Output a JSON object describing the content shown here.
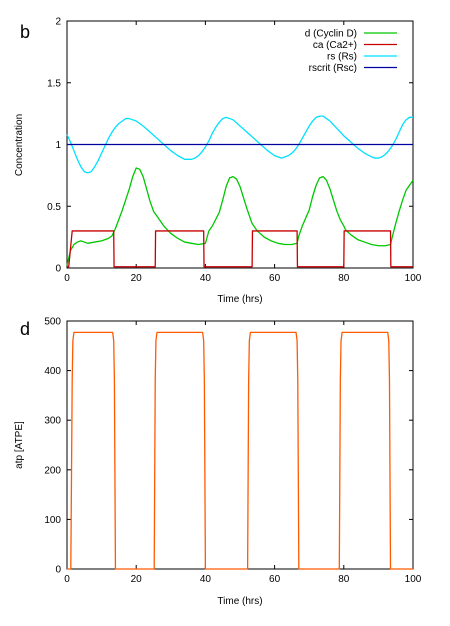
{
  "chart_data": [
    {
      "type": "line",
      "panel_label": "b",
      "xlabel": "Time (hrs)",
      "ylabel": "Concentration",
      "xlim": [
        0,
        100
      ],
      "ylim": [
        0,
        2
      ],
      "xticks": [
        "0",
        "20",
        "40",
        "60",
        "80",
        "100"
      ],
      "yticks": [
        "0",
        "0.5",
        "1",
        "1.5",
        "2"
      ],
      "legend_position": "top-right",
      "grid": false,
      "series": [
        {
          "name": "d (Cyclin D)",
          "color": "#00c800",
          "x": [
            0,
            1,
            2,
            3,
            4,
            5,
            6,
            8,
            10,
            12,
            13,
            14,
            16,
            18,
            19,
            20,
            21,
            22,
            23,
            24,
            25,
            26,
            27,
            28,
            30,
            32,
            34,
            36,
            38,
            40,
            40.5,
            41,
            42,
            44,
            45,
            46,
            47,
            48,
            49,
            50,
            51,
            52,
            53,
            53.5,
            55,
            57,
            59,
            61,
            63,
            65,
            66.5,
            67,
            68,
            70,
            71,
            72,
            73,
            74,
            75,
            76,
            77,
            78,
            79,
            80,
            80.5,
            82,
            84,
            86,
            88,
            90,
            92,
            93.5,
            94,
            95,
            96,
            97,
            98,
            99,
            100
          ],
          "y": [
            0.02,
            0.14,
            0.19,
            0.21,
            0.22,
            0.21,
            0.2,
            0.21,
            0.22,
            0.24,
            0.26,
            0.32,
            0.47,
            0.64,
            0.74,
            0.81,
            0.8,
            0.74,
            0.64,
            0.54,
            0.46,
            0.42,
            0.38,
            0.34,
            0.28,
            0.24,
            0.21,
            0.2,
            0.19,
            0.2,
            0.25,
            0.3,
            0.34,
            0.45,
            0.55,
            0.66,
            0.73,
            0.74,
            0.72,
            0.66,
            0.57,
            0.48,
            0.4,
            0.36,
            0.3,
            0.25,
            0.22,
            0.2,
            0.19,
            0.19,
            0.2,
            0.26,
            0.34,
            0.47,
            0.58,
            0.67,
            0.73,
            0.74,
            0.71,
            0.64,
            0.55,
            0.46,
            0.39,
            0.34,
            0.31,
            0.27,
            0.23,
            0.21,
            0.19,
            0.18,
            0.18,
            0.19,
            0.25,
            0.36,
            0.46,
            0.55,
            0.63,
            0.67,
            0.71
          ]
        },
        {
          "name": "ca (Ca2+)",
          "color": "#c80000",
          "x": [
            0,
            0.5,
            1.5,
            13.5,
            13.6,
            25.5,
            25.6,
            39.5,
            39.6,
            53.5,
            53.6,
            66.5,
            66.6,
            80.0,
            80.1,
            93.5,
            93.6,
            100
          ],
          "y": [
            0.01,
            0.01,
            0.3,
            0.3,
            0.01,
            0.01,
            0.3,
            0.3,
            0.01,
            0.01,
            0.3,
            0.3,
            0.01,
            0.01,
            0.3,
            0.3,
            0.01,
            0.01
          ]
        },
        {
          "name": "rs (Rs)",
          "color": "#00e0ff",
          "x": [
            0,
            1,
            2,
            3,
            4,
            5,
            6,
            7,
            8,
            9,
            10,
            11,
            12,
            13,
            14,
            15,
            16,
            17,
            18,
            19,
            20,
            22,
            24,
            26,
            28,
            30,
            32,
            34,
            35,
            36,
            37,
            38,
            39,
            40,
            41,
            42,
            43,
            44,
            45,
            46,
            47,
            48,
            50,
            52,
            54,
            56,
            58,
            60,
            61,
            62,
            63,
            64,
            65,
            66,
            67,
            68,
            69,
            70,
            71,
            72,
            73,
            74,
            75,
            76,
            78,
            80,
            82,
            84,
            86,
            88,
            89,
            90,
            91,
            92,
            93,
            94,
            95,
            96,
            97,
            98,
            99,
            100
          ],
          "y": [
            1.08,
            1.02,
            0.95,
            0.88,
            0.82,
            0.78,
            0.77,
            0.78,
            0.82,
            0.87,
            0.93,
            0.99,
            1.05,
            1.1,
            1.14,
            1.17,
            1.19,
            1.21,
            1.21,
            1.2,
            1.19,
            1.15,
            1.1,
            1.05,
            1.0,
            0.95,
            0.91,
            0.88,
            0.88,
            0.88,
            0.89,
            0.91,
            0.94,
            0.98,
            1.03,
            1.09,
            1.14,
            1.18,
            1.21,
            1.22,
            1.21,
            1.2,
            1.15,
            1.1,
            1.05,
            1.0,
            0.95,
            0.91,
            0.9,
            0.89,
            0.9,
            0.91,
            0.93,
            0.96,
            1.0,
            1.05,
            1.1,
            1.15,
            1.19,
            1.22,
            1.23,
            1.23,
            1.21,
            1.19,
            1.13,
            1.07,
            1.02,
            0.97,
            0.93,
            0.9,
            0.89,
            0.89,
            0.9,
            0.92,
            0.95,
            0.99,
            1.04,
            1.1,
            1.16,
            1.2,
            1.22,
            1.22
          ]
        },
        {
          "name": "rscrit (Rsc)",
          "color": "#0000a0",
          "x": [
            0,
            100
          ],
          "y": [
            1.0,
            1.0
          ]
        }
      ]
    },
    {
      "type": "line",
      "panel_label": "d",
      "xlabel": "Time (hrs)",
      "ylabel": "atp [ATPE]",
      "xlim": [
        0,
        100
      ],
      "ylim": [
        0,
        500
      ],
      "xticks": [
        "0",
        "20",
        "40",
        "60",
        "80",
        "100"
      ],
      "yticks": [
        "0",
        "100",
        "200",
        "300",
        "400",
        "500"
      ],
      "grid": false,
      "series": [
        {
          "name": "atp",
          "color": "#ff5a00",
          "x": [
            0,
            1.1,
            1.5,
            1.7,
            2.0,
            13.2,
            13.5,
            13.7,
            14.0,
            25.2,
            25.5,
            25.7,
            26.0,
            39.2,
            39.5,
            39.7,
            40.0,
            52.2,
            52.5,
            52.7,
            53.0,
            66.2,
            66.5,
            66.7,
            67.0,
            78.7,
            79.0,
            79.2,
            79.5,
            92.7,
            93.0,
            93.2,
            93.5,
            100
          ],
          "y": [
            0,
            0,
            380,
            460,
            477,
            477,
            460,
            380,
            0,
            0,
            380,
            460,
            477,
            477,
            460,
            380,
            0,
            0,
            380,
            460,
            477,
            477,
            460,
            380,
            0,
            0,
            380,
            460,
            477,
            477,
            460,
            380,
            0,
            0
          ]
        }
      ]
    }
  ]
}
